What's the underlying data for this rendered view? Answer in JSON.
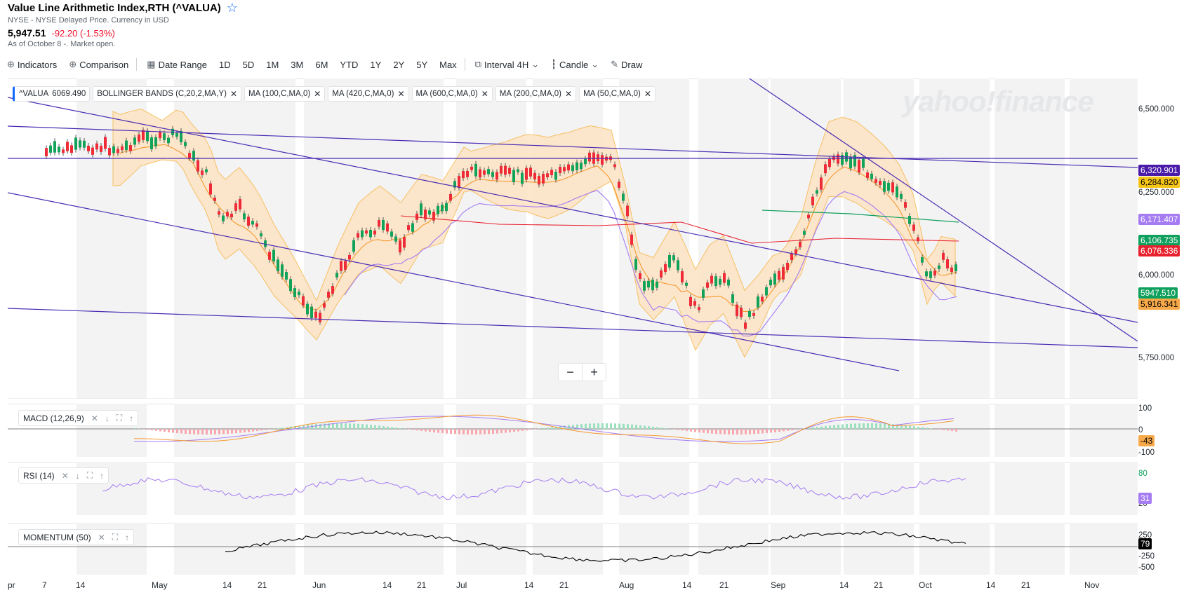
{
  "header": {
    "title": "Value Line Arithmetic Index,RTH (^VALUA)",
    "exchange": "NYSE - NYSE Delayed Price. Currency in USD",
    "price": "5,947.51",
    "change": "-92.20 (-1.53%)",
    "as_of": "As of October 8 -. Market open."
  },
  "toolbar": {
    "indicators": "Indicators",
    "comparison": "Comparison",
    "date_range": "Date Range",
    "ranges": [
      "1D",
      "5D",
      "1M",
      "3M",
      "6M",
      "YTD",
      "1Y",
      "2Y",
      "5Y",
      "Max"
    ],
    "interval_label": "Interval",
    "interval_value": "4H",
    "chart_type": "Candle",
    "draw": "Draw"
  },
  "chips": [
    {
      "label": "^VALUA",
      "value": "6069.490"
    },
    {
      "label": "BOLLINGER BANDS (C,20,2,MA,Y)"
    },
    {
      "label": "MA (100,C,MA,0)"
    },
    {
      "label": "MA (420,C,MA,0)"
    },
    {
      "label": "MA (600,C,MA,0)"
    },
    {
      "label": "MA (200,C,MA,0)"
    },
    {
      "label": "MA (50,C,MA,0)"
    }
  ],
  "watermark": "yahoo!finance",
  "price_axis": [
    "6,500.000",
    "6,250.000",
    "6,000.000",
    "5,750.000"
  ],
  "price_tags": [
    {
      "text": "6,320.901",
      "color": "#4a1aa8"
    },
    {
      "text": "6,284.820",
      "color": "#f5c518"
    },
    {
      "text": "6,171.407",
      "color": "#a57cf2"
    },
    {
      "text": "6,106.735",
      "color": "#0ea05c"
    },
    {
      "text": "6,076.336",
      "color": "#e8212e"
    },
    {
      "text": "5947.510",
      "color": "#0ea05c"
    },
    {
      "text": "5,916.341",
      "color": "#f7a94a"
    }
  ],
  "panels": {
    "macd": {
      "label": "MACD (12,26,9)",
      "ticks": [
        "100",
        "0",
        "-100"
      ],
      "tag": "-43",
      "tag_color": "#f7a94a"
    },
    "rsi": {
      "label": "RSI (14)",
      "ticks": [
        "80",
        "20"
      ],
      "tag": "31",
      "tag_color": "#a57cf2"
    },
    "momentum": {
      "label": "MOMENTUM (50)",
      "ticks": [
        "250",
        "-250",
        "-500"
      ],
      "tag": "79",
      "tag_color": "#000000"
    }
  },
  "x_axis": [
    "pr",
    "7",
    "14",
    "May",
    "14",
    "21",
    "Jun",
    "14",
    "21",
    "Jul",
    "14",
    "21",
    "Aug",
    "14",
    "21",
    "Sep",
    "14",
    "21",
    "Oct",
    "14",
    "21",
    "Nov"
  ],
  "colors": {
    "bb_fill": "#fde3c4",
    "bb_line": "#f7b84a",
    "trend": "#4a2cb3",
    "up": "#12a35a",
    "down": "#ef2b38",
    "ma_red": "#e8212e",
    "ma_purple": "#a57cf2",
    "ma_green": "#0ea05c",
    "ma_orange": "#f59a2f"
  }
}
